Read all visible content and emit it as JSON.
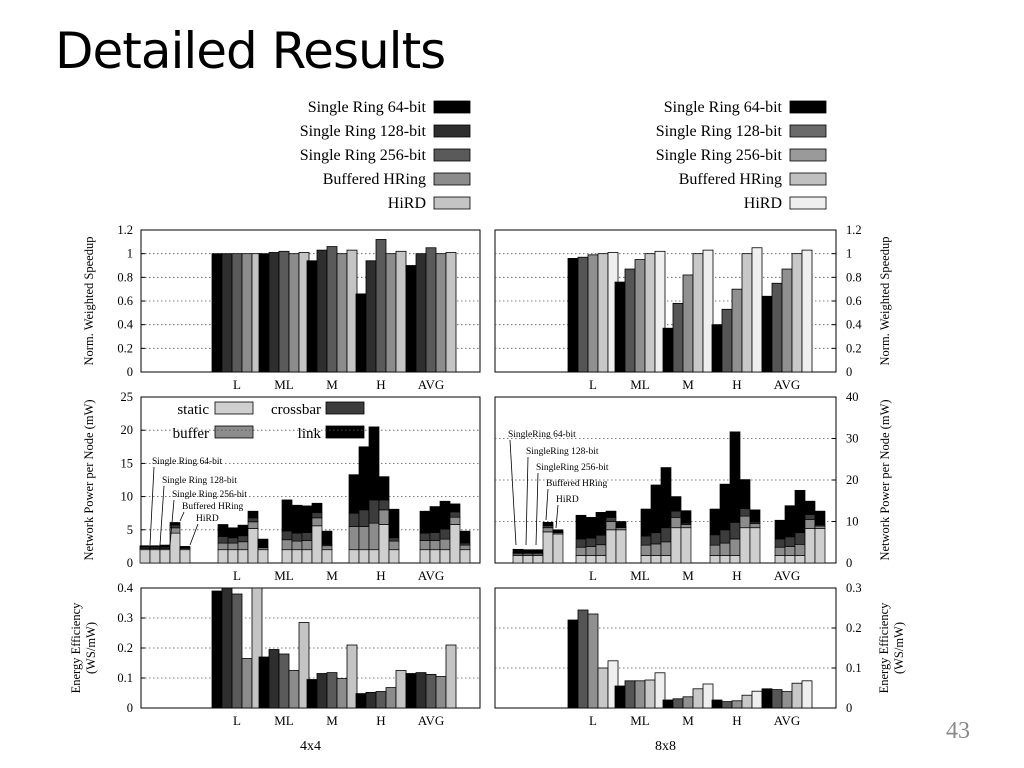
{
  "slide": {
    "title": "Detailed Results",
    "page_number": "43"
  },
  "chart_data": [
    {
      "id": "speedup-4x4",
      "type": "bar",
      "grid": "horizontal dotted",
      "ylabel": "Norm. Weighted Speedup",
      "ylim": [
        0,
        1.2
      ],
      "yticks": [
        "0",
        "0.2",
        "0.4",
        "0.6",
        "0.8",
        "1",
        "1.2"
      ],
      "categories": [
        "L",
        "ML",
        "M",
        "H",
        "AVG"
      ],
      "series": [
        {
          "name": "Single Ring 64-bit",
          "color": "#000000",
          "values": [
            1.0,
            1.0,
            0.94,
            0.66,
            0.9
          ]
        },
        {
          "name": "Single Ring 128-bit",
          "color": "#2e2e2e",
          "values": [
            1.0,
            1.01,
            1.03,
            0.94,
            1.0
          ]
        },
        {
          "name": "Single Ring 256-bit",
          "color": "#5a5a5a",
          "values": [
            1.0,
            1.02,
            1.06,
            1.12,
            1.05
          ]
        },
        {
          "name": "Buffered HRing",
          "color": "#8c8c8c",
          "values": [
            1.0,
            1.0,
            1.0,
            1.0,
            1.0
          ]
        },
        {
          "name": "HiRD",
          "color": "#c4c4c4",
          "values": [
            1.0,
            1.01,
            1.03,
            1.02,
            1.01
          ]
        }
      ]
    },
    {
      "id": "speedup-8x8",
      "type": "bar",
      "grid": "horizontal dotted",
      "ylabel": "Norm. Weighted Speedup",
      "ylim": [
        0,
        1.2
      ],
      "yticks": [
        "0",
        "0.2",
        "0.4",
        "0.6",
        "0.8",
        "1",
        "1.2"
      ],
      "categories": [
        "L",
        "ML",
        "M",
        "H",
        "AVG"
      ],
      "series": [
        {
          "name": "Single Ring 64-bit",
          "color": "#000000",
          "values": [
            0.96,
            0.76,
            0.37,
            0.4,
            0.64
          ]
        },
        {
          "name": "Single Ring 128-bit",
          "color": "#555555",
          "values": [
            0.97,
            0.87,
            0.58,
            0.53,
            0.75
          ]
        },
        {
          "name": "Single Ring 256-bit",
          "color": "#909090",
          "values": [
            0.99,
            0.95,
            0.82,
            0.7,
            0.87
          ]
        },
        {
          "name": "Buffered HRing",
          "color": "#c8c8c8",
          "values": [
            1.0,
            1.0,
            1.0,
            1.0,
            1.0
          ]
        },
        {
          "name": "HiRD",
          "color": "#efefef",
          "values": [
            1.01,
            1.02,
            1.03,
            1.05,
            1.03
          ]
        }
      ]
    },
    {
      "id": "power-4x4",
      "type": "stacked-bar",
      "grid": "horizontal dotted",
      "ylabel": "Network Power per Node (mW)",
      "ylim": [
        0,
        25
      ],
      "yticks": [
        "0",
        "5",
        "10",
        "15",
        "20",
        "25"
      ],
      "categories": [
        "L",
        "ML",
        "M",
        "H",
        "AVG"
      ],
      "components": [
        {
          "name": "static",
          "color": "#cfcfcf"
        },
        {
          "name": "buffer",
          "color": "#8c8c8c"
        },
        {
          "name": "crossbar",
          "color": "#3c3c3c"
        },
        {
          "name": "link",
          "color": "#000000"
        }
      ],
      "bar_names": [
        "Single Ring 64-bit",
        "Single Ring 128-bit",
        "Single Ring 256-bit",
        "Buffered HRing",
        "HiRD"
      ],
      "stacks": [
        [
          [
            2.0,
            0.2,
            0.2,
            0.2
          ],
          [
            2.0,
            0.2,
            0.2,
            0.2
          ],
          [
            2.0,
            0.2,
            0.2,
            0.3
          ],
          [
            4.5,
            0.8,
            0.4,
            0.4
          ],
          [
            2.0,
            0.2,
            0.1,
            0.2
          ]
        ],
        [
          [
            2.0,
            1.0,
            1.0,
            1.8
          ],
          [
            2.0,
            1.0,
            0.8,
            1.5
          ],
          [
            2.0,
            1.2,
            0.9,
            1.6
          ],
          [
            5.2,
            1.0,
            0.6,
            1.0
          ],
          [
            2.0,
            0.3,
            0.1,
            1.2
          ]
        ],
        [
          [
            2.0,
            1.5,
            1.3,
            4.7
          ],
          [
            2.0,
            1.3,
            1.2,
            4.2
          ],
          [
            2.0,
            1.4,
            1.2,
            4.0
          ],
          [
            5.6,
            1.2,
            0.8,
            1.4
          ],
          [
            2.0,
            0.6,
            0.2,
            2.0
          ]
        ],
        [
          [
            2.0,
            3.5,
            2.0,
            5.8
          ],
          [
            2.0,
            3.5,
            2.5,
            9.5
          ],
          [
            2.0,
            4.0,
            3.5,
            11.0
          ],
          [
            5.8,
            2.2,
            1.5,
            3.5
          ],
          [
            2.0,
            1.3,
            0.5,
            4.3
          ]
        ],
        [
          [
            2.0,
            1.4,
            1.1,
            3.3
          ],
          [
            2.0,
            1.4,
            1.2,
            3.9
          ],
          [
            2.0,
            1.6,
            1.5,
            4.2
          ],
          [
            5.8,
            1.1,
            0.8,
            1.2
          ],
          [
            2.0,
            0.7,
            0.3,
            1.8
          ]
        ]
      ],
      "annotations": [
        "Single Ring 64-bit",
        "Single Ring 128-bit",
        "Single Ring 256-bit",
        "Buffered HRing",
        "HiRD"
      ]
    },
    {
      "id": "power-8x8",
      "type": "stacked-bar",
      "grid": "horizontal dotted",
      "ylabel": "Network Power per Node (mW)",
      "ylim": [
        0,
        40
      ],
      "yticks": [
        "0",
        "10",
        "20",
        "30",
        "40"
      ],
      "categories": [
        "L",
        "ML",
        "M",
        "H",
        "AVG"
      ],
      "components": [
        {
          "name": "static",
          "color": "#cfcfcf"
        },
        {
          "name": "buffer",
          "color": "#8c8c8c"
        },
        {
          "name": "crossbar",
          "color": "#3c3c3c"
        },
        {
          "name": "link",
          "color": "#000000"
        }
      ],
      "bar_names": [
        "Single Ring 64-bit",
        "Single Ring 128-bit",
        "Single Ring 256-bit",
        "Buffered HRing",
        "HiRD"
      ],
      "stacks": [
        [
          [
            1.8,
            0.4,
            0.3,
            0.8
          ],
          [
            1.8,
            0.4,
            0.3,
            0.7
          ],
          [
            1.8,
            0.4,
            0.3,
            0.7
          ],
          [
            7.5,
            1.0,
            0.5,
            0.8
          ],
          [
            7.0,
            0.3,
            0.1,
            0.6
          ]
        ],
        [
          [
            1.8,
            2.0,
            2.0,
            5.7
          ],
          [
            1.8,
            2.2,
            2.0,
            5.0
          ],
          [
            1.8,
            2.6,
            2.3,
            5.5
          ],
          [
            8.0,
            2.0,
            1.0,
            1.5
          ],
          [
            8.0,
            0.5,
            0.2,
            1.3
          ]
        ],
        [
          [
            1.8,
            2.5,
            2.2,
            6.5
          ],
          [
            1.8,
            2.8,
            2.7,
            11.5
          ],
          [
            1.8,
            3.3,
            3.4,
            14.5
          ],
          [
            8.5,
            2.5,
            1.5,
            3.5
          ],
          [
            8.5,
            0.8,
            0.3,
            3.0
          ]
        ],
        [
          [
            1.8,
            2.5,
            2.5,
            6.2
          ],
          [
            1.8,
            3.0,
            3.2,
            11.0
          ],
          [
            1.8,
            4.0,
            4.0,
            21.8
          ],
          [
            8.5,
            2.8,
            1.8,
            7.0
          ],
          [
            8.5,
            1.0,
            0.4,
            2.9
          ]
        ],
        [
          [
            1.8,
            2.0,
            2.0,
            4.5
          ],
          [
            1.8,
            2.2,
            2.3,
            7.5
          ],
          [
            1.8,
            2.7,
            2.8,
            10.2
          ],
          [
            8.3,
            2.2,
            1.2,
            3.2
          ],
          [
            8.3,
            0.6,
            0.3,
            3.3
          ]
        ]
      ],
      "annotations": [
        "SingleRing 64-bit",
        "SingleRing 128-bit",
        "SingleRing 256-bit",
        "Buffered HRing",
        "HiRD"
      ]
    },
    {
      "id": "efficiency-4x4",
      "type": "bar",
      "grid": "horizontal dotted",
      "ylabel": [
        "Energy Efficiency",
        "(WS/mW)"
      ],
      "ylim": [
        0,
        0.4
      ],
      "yticks": [
        "0",
        "0.1",
        "0.2",
        "0.3",
        "0.4"
      ],
      "categories": [
        "L",
        "ML",
        "M",
        "H",
        "AVG"
      ],
      "xlabel": "4x4",
      "series": [
        {
          "name": "Single Ring 64-bit",
          "color": "#000000",
          "values": [
            0.39,
            0.17,
            0.095,
            0.048,
            0.115
          ]
        },
        {
          "name": "Single Ring 128-bit",
          "color": "#2e2e2e",
          "values": [
            0.4,
            0.195,
            0.115,
            0.052,
            0.118
          ]
        },
        {
          "name": "Single Ring 256-bit",
          "color": "#5a5a5a",
          "values": [
            0.38,
            0.18,
            0.118,
            0.055,
            0.112
          ]
        },
        {
          "name": "Buffered HRing",
          "color": "#8c8c8c",
          "values": [
            0.165,
            0.125,
            0.098,
            0.068,
            0.105
          ]
        },
        {
          "name": "HiRD",
          "color": "#c4c4c4",
          "values": [
            0.4,
            0.285,
            0.21,
            0.125,
            0.21
          ]
        }
      ]
    },
    {
      "id": "efficiency-8x8",
      "type": "bar",
      "grid": "horizontal dotted",
      "ylabel": [
        "Energy Efficiency",
        "(WS/mW)"
      ],
      "ylim": [
        0,
        0.3
      ],
      "yticks": [
        "0",
        "0.1",
        "0.2",
        "0.3"
      ],
      "categories": [
        "L",
        "ML",
        "M",
        "H",
        "AVG"
      ],
      "xlabel": "8x8",
      "series": [
        {
          "name": "Single Ring 64-bit",
          "color": "#000000",
          "values": [
            0.22,
            0.055,
            0.02,
            0.02,
            0.048
          ]
        },
        {
          "name": "Single Ring 128-bit",
          "color": "#555555",
          "values": [
            0.245,
            0.068,
            0.023,
            0.016,
            0.046
          ]
        },
        {
          "name": "Single Ring 256-bit",
          "color": "#909090",
          "values": [
            0.235,
            0.068,
            0.028,
            0.018,
            0.041
          ]
        },
        {
          "name": "Buffered HRing",
          "color": "#c8c8c8",
          "values": [
            0.1,
            0.07,
            0.048,
            0.032,
            0.062
          ]
        },
        {
          "name": "HiRD",
          "color": "#efefef",
          "values": [
            0.118,
            0.088,
            0.06,
            0.042,
            0.068
          ]
        }
      ]
    }
  ],
  "legends": {
    "left_top": [
      "Single Ring 64-bit",
      "Single Ring 128-bit",
      "Single Ring 256-bit",
      "Buffered HRing",
      "HiRD"
    ],
    "right_top": [
      "Single Ring 64-bit",
      "Single Ring 128-bit",
      "Single Ring 256-bit",
      "Buffered HRing",
      "HiRD"
    ],
    "power": [
      "static",
      "buffer",
      "crossbar",
      "link"
    ]
  }
}
